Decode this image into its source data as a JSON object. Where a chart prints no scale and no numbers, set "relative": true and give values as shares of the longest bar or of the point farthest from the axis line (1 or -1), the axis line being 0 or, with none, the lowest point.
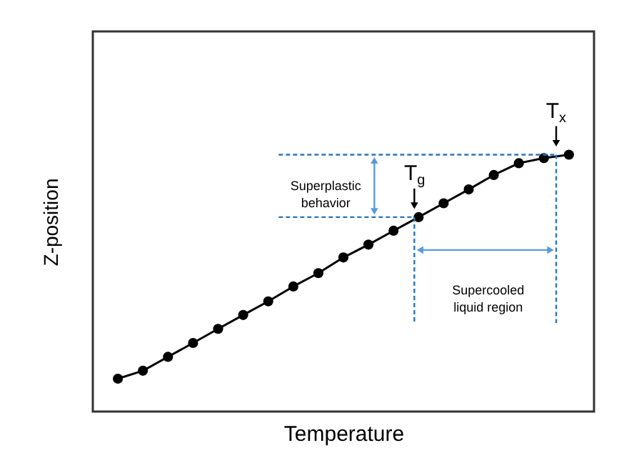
{
  "chart_data": {
    "type": "line",
    "relative": true,
    "xlabel": "Temperature",
    "ylabel": "Z-position",
    "marker": "circle",
    "line_style": "solid",
    "grid": false,
    "categories": [
      null,
      null,
      null,
      null,
      null,
      null,
      null,
      null,
      null,
      null,
      null,
      null,
      null,
      null,
      null,
      null,
      null,
      null,
      null
    ],
    "series": [
      {
        "color": "#000000",
        "values": [
          0.128,
          0.159,
          0.213,
          0.267,
          0.322,
          0.376,
          0.429,
          0.487,
          0.539,
          0.6,
          0.65,
          0.704,
          0.757,
          0.811,
          0.865,
          0.921,
          0.967,
          0.987,
          1
        ]
      }
    ],
    "ref_lines": [
      {
        "axis": "y",
        "value": 0.757,
        "color": "#2e75b6",
        "line_style": "dashed"
      },
      {
        "axis": "y",
        "value": 1,
        "color": "#2e75b6",
        "line_style": "dashed"
      }
    ],
    "annotations": [
      {
        "text": "T$_{g}$",
        "y": 0.757
      },
      {
        "text": "T$_{x}$",
        "y": 1
      },
      "Superplastic behavior",
      "Supercooled liquid region"
    ]
  }
}
